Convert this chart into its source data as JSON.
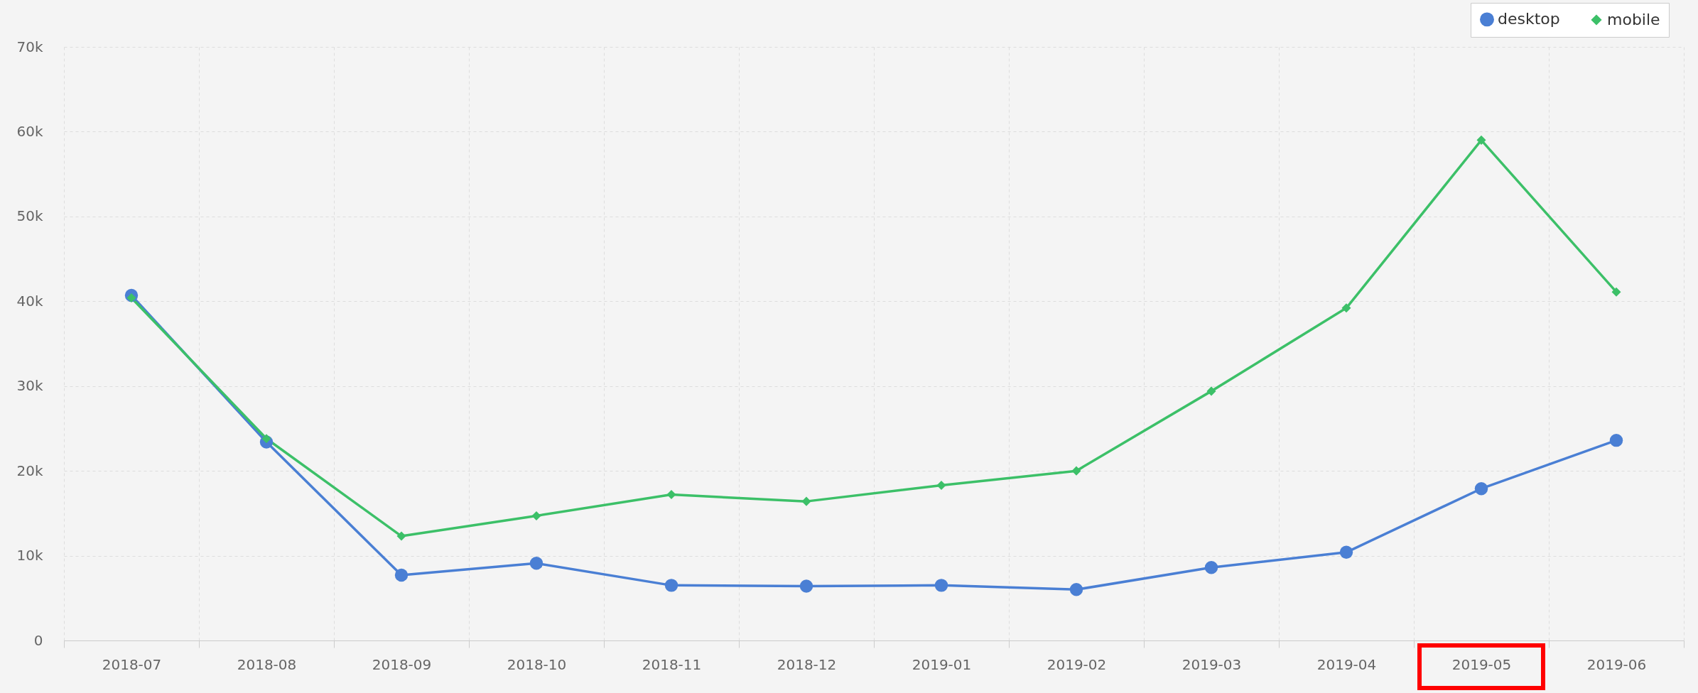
{
  "chart_data": {
    "type": "line",
    "categories": [
      "2018-07",
      "2018-08",
      "2018-09",
      "2018-10",
      "2018-11",
      "2018-12",
      "2019-01",
      "2019-02",
      "2019-03",
      "2019-04",
      "2019-05",
      "2019-06"
    ],
    "series": [
      {
        "name": "desktop",
        "color": "#4a7fd4",
        "marker": "circle",
        "values": [
          40700,
          23400,
          7700,
          9100,
          6500,
          6400,
          6500,
          6000,
          8600,
          10400,
          17900,
          23600
        ]
      },
      {
        "name": "mobile",
        "color": "#3cc068",
        "marker": "diamond",
        "values": [
          40400,
          23800,
          12300,
          14700,
          17200,
          16400,
          18300,
          20000,
          29400,
          39200,
          59000,
          41100
        ]
      }
    ],
    "ylim": [
      0,
      70000
    ],
    "yticks": [
      0,
      {
        "value": 10000,
        "label": "10k"
      },
      {
        "value": 20000,
        "label": "20k"
      },
      {
        "value": 30000,
        "label": "30k"
      },
      {
        "value": 40000,
        "label": "40k"
      },
      {
        "value": 50000,
        "label": "50k"
      },
      {
        "value": 60000,
        "label": "60k"
      },
      {
        "value": 70000,
        "label": "70k"
      }
    ],
    "grid": true,
    "legend": "top right",
    "line_style": "solid"
  }
}
